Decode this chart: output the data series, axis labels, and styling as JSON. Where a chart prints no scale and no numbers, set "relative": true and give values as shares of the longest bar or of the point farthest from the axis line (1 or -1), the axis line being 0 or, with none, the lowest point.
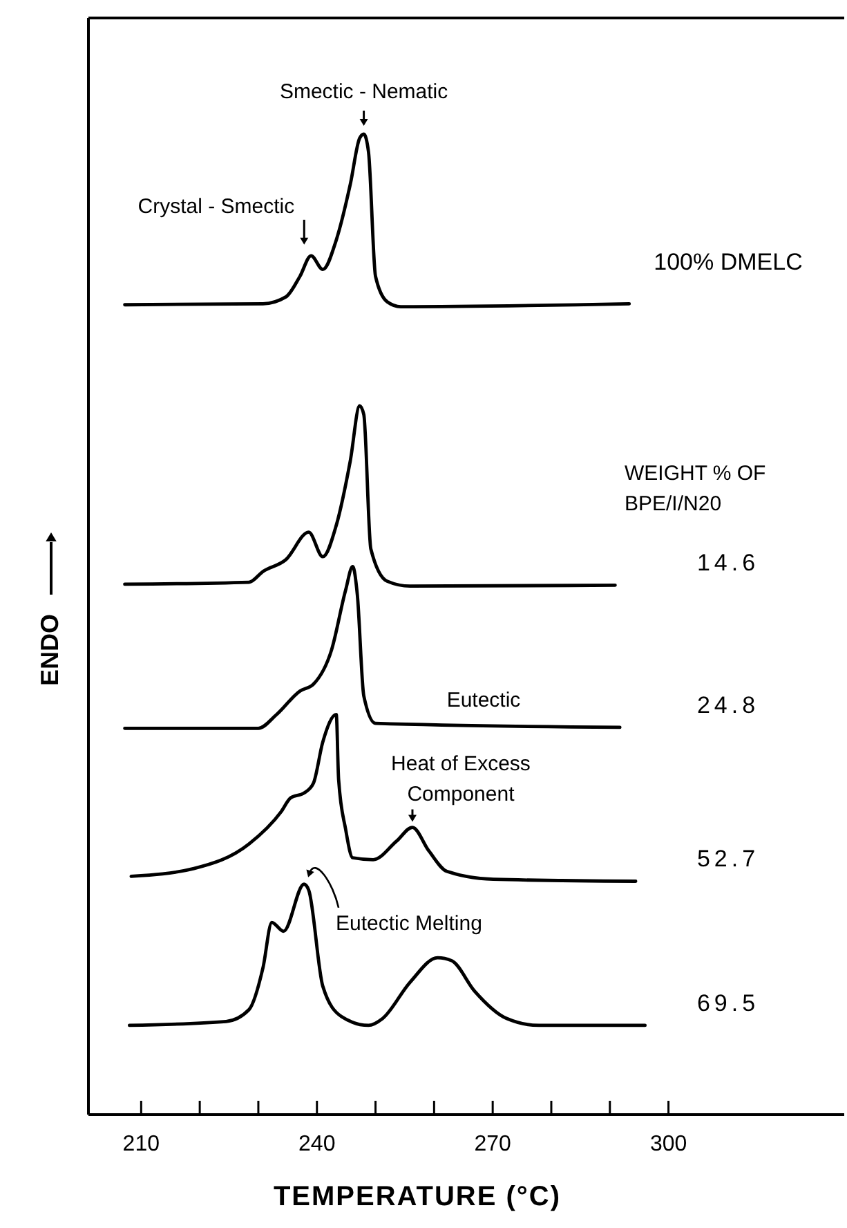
{
  "chart_data": {
    "type": "line",
    "relative": true,
    "xlabel": "TEMPERATURE (°C)",
    "ylabel": "ENDO",
    "xlim": [
      201,
      330
    ],
    "xticks": [
      210,
      {
        "value": 220,
        "label": null
      },
      {
        "value": 230,
        "label": null
      },
      240,
      {
        "value": 250,
        "label": null
      },
      {
        "value": 260,
        "label": null
      },
      270,
      {
        "value": 280,
        "label": null
      },
      {
        "value": 290,
        "label": null
      },
      300
    ],
    "grid": false,
    "legend": false,
    "marker": "none",
    "line_style": "solid",
    "series": [
      {
        "name": "100% DMELC",
        "color": "#000000",
        "x": [
          207.2,
          230.8,
          234.7,
          237.1,
          239.0,
          241.0,
          243.3,
          245.7,
          247.3,
          248.0,
          248.8,
          250.0,
          252.0,
          254.3,
          293.3
        ],
        "values": [
          0.826,
          0.827,
          0.834,
          0.855,
          0.876,
          0.862,
          0.892,
          0.949,
          0.996,
          1.0,
          0.982,
          0.855,
          0.829,
          0.824,
          0.827
        ]
      },
      {
        "name": "14.6",
        "color": "#000000",
        "x": [
          207.2,
          228.4,
          230.8,
          234.7,
          238.6,
          241.0,
          243.3,
          245.7,
          247.3,
          248.0,
          249.2,
          252.0,
          255.9,
          290.9
        ],
        "values": [
          0.541,
          0.543,
          0.554,
          0.566,
          0.594,
          0.569,
          0.601,
          0.667,
          0.723,
          0.714,
          0.577,
          0.544,
          0.539,
          0.54
        ]
      },
      {
        "name": "24.8",
        "color": "#000000",
        "x": [
          207.2,
          230.0,
          233.1,
          237.1,
          239.4,
          242.5,
          244.9,
          246.1,
          246.9,
          248.0,
          250.0,
          291.7
        ],
        "values": [
          0.394,
          0.394,
          0.408,
          0.432,
          0.439,
          0.474,
          0.535,
          0.559,
          0.53,
          0.427,
          0.399,
          0.395
        ]
      },
      {
        "name": "52.7",
        "color": "#000000",
        "x": [
          208.3,
          219.0,
          228.4,
          233.9,
          235.5,
          237.8,
          239.4,
          241.0,
          243.3,
          243.7,
          244.9,
          246.1,
          249.6,
          253.6,
          256.3,
          259.1,
          262.2,
          270.1,
          294.4
        ],
        "values": [
          0.243,
          0.251,
          0.276,
          0.309,
          0.323,
          0.328,
          0.338,
          0.38,
          0.408,
          0.342,
          0.291,
          0.262,
          0.26,
          0.279,
          0.293,
          0.269,
          0.248,
          0.24,
          0.238
        ]
      },
      {
        "name": "69.5",
        "color": "#000000",
        "x": [
          208.0,
          224.5,
          228.4,
          230.8,
          232.3,
          234.3,
          237.8,
          238.6,
          241.0,
          244.2,
          248.8,
          251.2,
          255.9,
          260.6,
          263.0,
          266.9,
          272.4,
          277.9,
          296.0
        ],
        "values": [
          0.091,
          0.095,
          0.107,
          0.15,
          0.196,
          0.187,
          0.235,
          0.229,
          0.131,
          0.1,
          0.091,
          0.098,
          0.135,
          0.16,
          0.157,
          0.126,
          0.098,
          0.091,
          0.091
        ]
      }
    ],
    "annotations": [
      {
        "text": "Smectic - Nematic",
        "x": 248,
        "y": 1.0
      },
      {
        "text": "Crystal - Smectic",
        "x": 239,
        "y": 0.876
      },
      "Eutectic",
      {
        "text": "Heat of Excess\nComponent",
        "x": 256.3,
        "y": 0.293
      },
      {
        "text": "Eutectic Melting",
        "x": 237.8,
        "y": 0.235
      },
      "WEIGHT % OF\nBPE/I/N20"
    ]
  }
}
